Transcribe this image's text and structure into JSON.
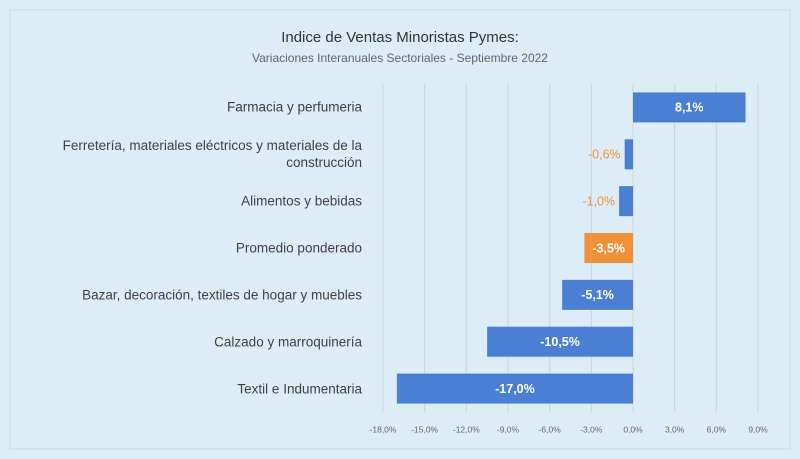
{
  "chart_data": {
    "type": "bar",
    "orientation": "horizontal",
    "title": "Indice de Ventas Minoristas Pymes:",
    "subtitle": "Variaciones Interanuales Sectoriales - Septiembre 2022",
    "categories": [
      "Farmacia y perfumeria",
      "Ferretería, materiales eléctricos y materiales de la construcción",
      "Alimentos y bebidas",
      "Promedio ponderado",
      "Bazar, decoración, textiles de hogar y muebles",
      "Calzado y marroquinería",
      "Textil e Indumentaria"
    ],
    "values": [
      8.1,
      -0.6,
      -1.0,
      -3.5,
      -5.1,
      -10.5,
      -17.0
    ],
    "value_labels": [
      "8,1%",
      "-0,6%",
      "-1,0%",
      "-3,5%",
      "-5,1%",
      "-10,5%",
      "-17,0%"
    ],
    "colors": [
      "#4a7fd4",
      "#4a7fd4",
      "#4a7fd4",
      "#f0913a",
      "#4a7fd4",
      "#4a7fd4",
      "#4a7fd4"
    ],
    "xlim": [
      -18,
      9
    ],
    "xticks": [
      {
        "value": -18,
        "label": "-18,0%"
      },
      {
        "value": -15,
        "label": "-15,0%"
      },
      {
        "value": -12,
        "label": "-12,0%"
      },
      {
        "value": -9,
        "label": "-9,0%"
      },
      {
        "value": -6,
        "label": "-6,0%"
      },
      {
        "value": -3,
        "label": "-3,0%"
      },
      {
        "value": 0,
        "label": "0,0%"
      },
      {
        "value": 3,
        "label": "3,0%"
      },
      {
        "value": 6,
        "label": "6,0%"
      },
      {
        "value": 9,
        "label": "9,0%"
      }
    ],
    "grid": true
  }
}
